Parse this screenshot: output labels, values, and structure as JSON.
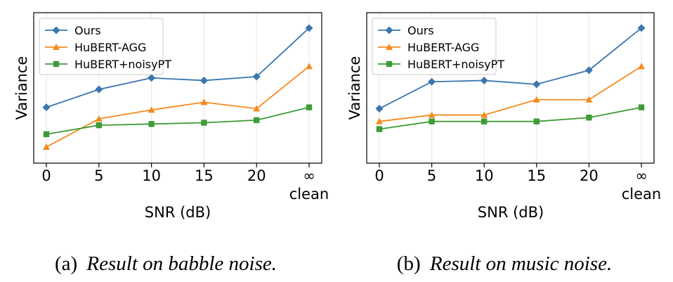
{
  "chart_data": [
    {
      "type": "line",
      "caption_label": "(a)",
      "caption_text": "Result on babble noise.",
      "xlabel": "SNR (dB)",
      "ylabel": "Variance",
      "categories": [
        "0",
        "5",
        "10",
        "15",
        "20",
        "∞"
      ],
      "extra_tick_label": "clean",
      "ylim": [
        0,
        1
      ],
      "grid": "vertical",
      "legend_position": "top-left",
      "series": [
        {
          "name": "Ours",
          "marker": "diamond",
          "color": "#3a76af",
          "values": [
            0.37,
            0.51,
            0.6,
            0.58,
            0.61,
            0.99
          ]
        },
        {
          "name": "HuBERT-AGG",
          "marker": "triangle",
          "color": "#f58a1f",
          "values": [
            0.06,
            0.28,
            0.35,
            0.41,
            0.36,
            0.69
          ]
        },
        {
          "name": "HuBERT+noisyPT",
          "marker": "square",
          "color": "#3d9c35",
          "values": [
            0.16,
            0.23,
            0.24,
            0.25,
            0.27,
            0.37
          ]
        }
      ]
    },
    {
      "type": "line",
      "caption_label": "(b)",
      "caption_text": "Result on music noise.",
      "xlabel": "SNR (dB)",
      "ylabel": "Variance",
      "categories": [
        "0",
        "5",
        "10",
        "15",
        "20",
        "∞"
      ],
      "extra_tick_label": "clean",
      "ylim": [
        0,
        1
      ],
      "grid": "vertical",
      "legend_position": "top-left",
      "series": [
        {
          "name": "Ours",
          "marker": "diamond",
          "color": "#3a76af",
          "values": [
            0.36,
            0.57,
            0.58,
            0.55,
            0.66,
            0.99
          ]
        },
        {
          "name": "HuBERT-AGG",
          "marker": "triangle",
          "color": "#f58a1f",
          "values": [
            0.26,
            0.31,
            0.31,
            0.43,
            0.43,
            0.69
          ]
        },
        {
          "name": "HuBERT+noisyPT",
          "marker": "square",
          "color": "#3d9c35",
          "values": [
            0.2,
            0.26,
            0.26,
            0.26,
            0.29,
            0.37
          ]
        }
      ]
    }
  ]
}
